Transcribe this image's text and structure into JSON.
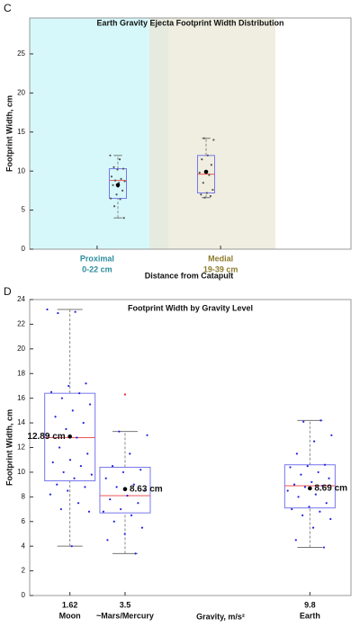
{
  "chart_data": [
    {
      "type": "box",
      "panel": "C",
      "title": "Earth Gravity Ejecta Footprint Width Distribution",
      "xlabel": "Distance from Catapult",
      "ylabel": "Footprint Width, cm",
      "xlim": [
        0,
        51
      ],
      "ylim": [
        0,
        29.6
      ],
      "yticks": [
        0,
        5,
        10,
        15,
        20,
        25
      ],
      "xticks": [
        {
          "value": 10.7,
          "label": "Proximal"
        },
        {
          "value": 30.3,
          "label": "Medial"
        }
      ],
      "xtick_sublabels": [
        "0-22 cm",
        "19-39 cm"
      ],
      "xtick_colors": [
        "#2b8c9c",
        "#8c7c2c"
      ],
      "bands": [
        {
          "from": 0,
          "to": 22,
          "color": "#c8f6f8"
        },
        {
          "from": 19,
          "to": 39,
          "color": "#e9e8d6"
        }
      ],
      "groups": [
        {
          "x": 14,
          "whisker": [
            4,
            12
          ],
          "box": [
            6.5,
            10.3
          ],
          "median": 8.8,
          "mean": 8.2,
          "point_color": "#555555",
          "points": [
            12,
            11.5,
            10.5,
            10.3,
            10.2,
            9.3,
            9,
            8.8,
            8.7,
            8.5,
            8.2,
            7.5,
            7,
            6.5,
            6.4,
            5.5,
            4,
            8
          ]
        },
        {
          "x": 28,
          "whisker": [
            6.6,
            14.2
          ],
          "box": [
            7.2,
            12
          ],
          "median": 9.6,
          "mean": 9.9,
          "point_color": "#555555",
          "points": [
            14.2,
            14,
            12,
            11.5,
            10.8,
            10,
            9.8,
            9.5,
            8.5,
            7.6,
            7.2,
            7,
            6.8,
            6.6
          ]
        }
      ]
    },
    {
      "type": "box",
      "panel": "D",
      "title": "Footprint Width by Gravity Level",
      "xlabel": "Gravity, m/s²",
      "ylabel": "Footprint Width, cm",
      "xlim": [
        0.25,
        11.2
      ],
      "ylim": [
        0,
        24
      ],
      "yticks": [
        0,
        2,
        4,
        6,
        8,
        10,
        12,
        14,
        16,
        18,
        20,
        22,
        24
      ],
      "xticks": [
        1.62,
        3.5,
        9.8
      ],
      "xtick_sublabels": [
        "Moon",
        "~Mars/Mercury",
        "Earth"
      ],
      "groups": [
        {
          "x": 1.62,
          "whisker": [
            4,
            23.2
          ],
          "box": [
            9.3,
            16.4
          ],
          "median": 12.8,
          "mean": 12.89,
          "mean_label": "12.89 cm",
          "point_color": "#2222dd",
          "points": [
            23.2,
            23,
            22.9,
            17.2,
            17,
            16.5,
            16.4,
            16,
            15.5,
            15,
            14.5,
            14,
            13.5,
            13,
            12.8,
            12,
            11.5,
            11,
            10.8,
            10.5,
            10,
            9.8,
            9.5,
            9,
            8.8,
            8.5,
            8.2,
            7.5,
            7,
            6.8,
            4
          ]
        },
        {
          "x": 3.5,
          "whisker": [
            3.4,
            13.3
          ],
          "box": [
            6.7,
            10.4
          ],
          "median": 8.1,
          "mean": 8.63,
          "mean_label": "8.63 cm",
          "point_color": "#2222dd",
          "points": [
            13.3,
            13,
            11.5,
            10.5,
            10.2,
            10,
            9.5,
            9,
            8.8,
            8.5,
            8.1,
            7.8,
            7.5,
            7,
            6.8,
            6.5,
            6,
            5.5,
            5,
            4.5,
            3.4
          ],
          "outliers": [
            16.3
          ],
          "outlier_color": "#ee3333"
        },
        {
          "x": 9.8,
          "whisker": [
            3.9,
            14.2
          ],
          "box": [
            7.1,
            10.6
          ],
          "median": 8.9,
          "mean": 8.69,
          "mean_label": "8.69 cm",
          "point_color": "#2222dd",
          "points": [
            14.2,
            14.1,
            13,
            12.5,
            11.5,
            10.6,
            10.5,
            10.4,
            10,
            9.8,
            9.5,
            9.2,
            9,
            8.9,
            8.8,
            8.5,
            8.2,
            8,
            7.5,
            7.2,
            7,
            6.8,
            6.5,
            6.2,
            5.5,
            4.5,
            3.9
          ]
        }
      ]
    }
  ]
}
